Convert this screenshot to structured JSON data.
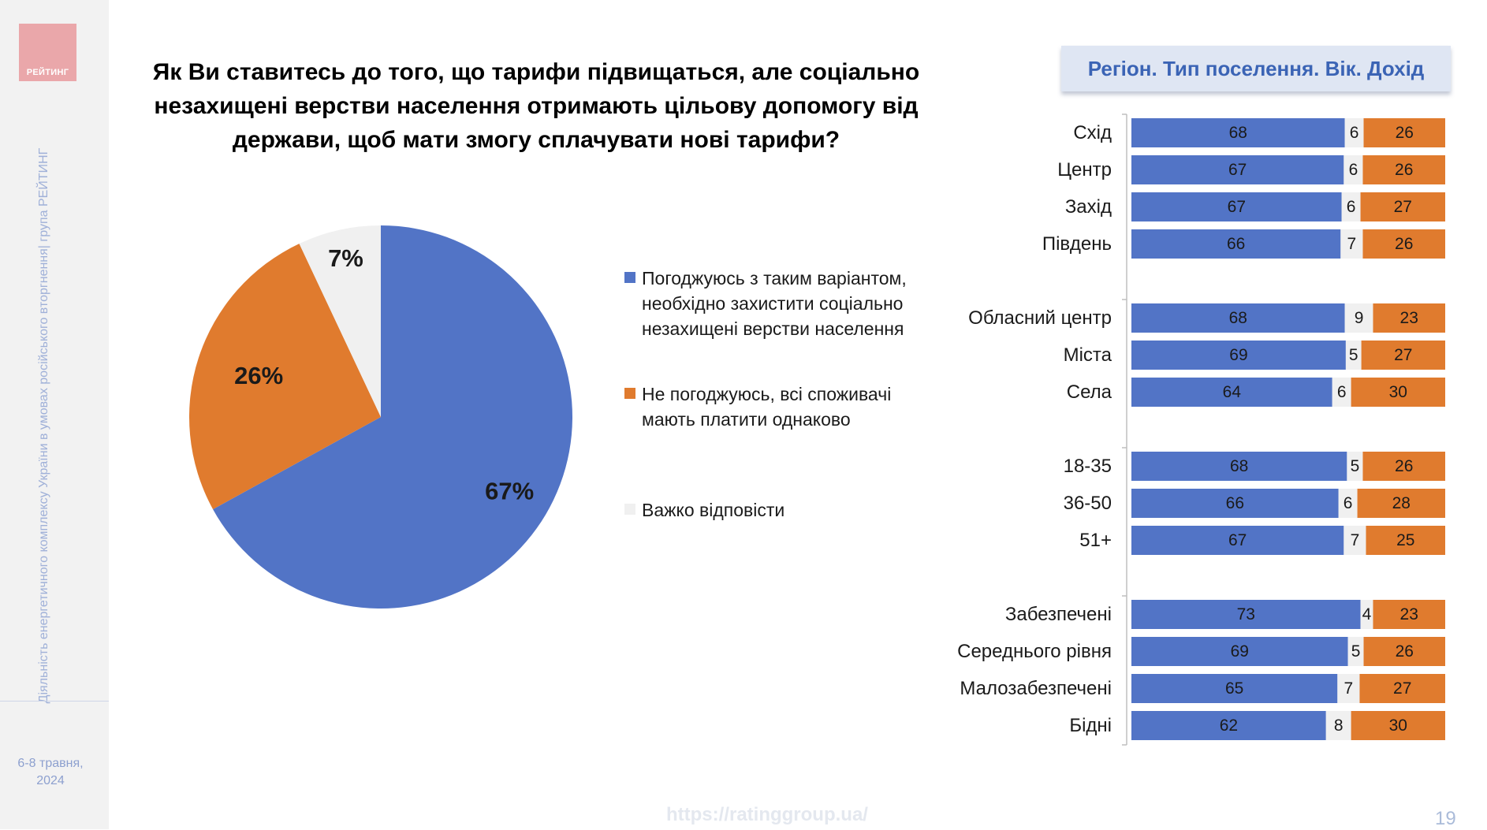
{
  "logo": {
    "text": "РЕЙТИНГ"
  },
  "sidebar": {
    "caption": "Діяльність енергетичного комплексу України в умовах російського вторгнення| група РЕЙТИНГ",
    "date_line1": "6-8 травня,",
    "date_line2": "2024"
  },
  "question": "Як Ви ставитесь до того, що тарифи підвищаться, але соціально незахищені верстви населення отримають цільову допомогу від держави, щоб мати змогу сплачувати нові тарифи?",
  "colors": {
    "agree": "#5274c6",
    "disagree": "#e07b2e",
    "hard": "#f0f0f0"
  },
  "chart_data": [
    {
      "type": "pie",
      "series": [
        {
          "name": "Погоджуюсь з таким варіантом, необхідно захистити соціально незахищені верстви населення",
          "value": 67,
          "label": "67%"
        },
        {
          "name": "Не погоджуюсь, всі споживачі мають платити однаково",
          "value": 26,
          "label": "26%"
        },
        {
          "name": "Важко відповісти",
          "value": 7,
          "label": "7%"
        }
      ]
    },
    {
      "type": "bar",
      "orientation": "horizontal",
      "stacked": true,
      "title": "Регіон. Тип поселення. Вік. Дохід",
      "groups": [
        {
          "categories": [
            "Схід",
            "Центр",
            "Захід",
            "Південь"
          ],
          "values": [
            [
              68,
              6,
              26
            ],
            [
              67,
              6,
              26
            ],
            [
              67,
              6,
              27
            ],
            [
              66,
              7,
              26
            ]
          ]
        },
        {
          "categories": [
            "Обласний центр",
            "Міста",
            "Села"
          ],
          "values": [
            [
              68,
              9,
              23
            ],
            [
              69,
              5,
              27
            ],
            [
              64,
              6,
              30
            ]
          ]
        },
        {
          "categories": [
            "18-35",
            "36-50",
            "51+"
          ],
          "values": [
            [
              68,
              5,
              26
            ],
            [
              66,
              6,
              28
            ],
            [
              67,
              7,
              25
            ]
          ]
        },
        {
          "categories": [
            "Забезпечені",
            "Середнього рівня",
            "Малозабезпечені",
            "Бідні"
          ],
          "values": [
            [
              73,
              4,
              23
            ],
            [
              69,
              5,
              26
            ],
            [
              65,
              7,
              27
            ],
            [
              62,
              8,
              30
            ]
          ]
        }
      ]
    }
  ],
  "footer": {
    "url": "https://ratinggroup.ua/",
    "page": "19"
  }
}
